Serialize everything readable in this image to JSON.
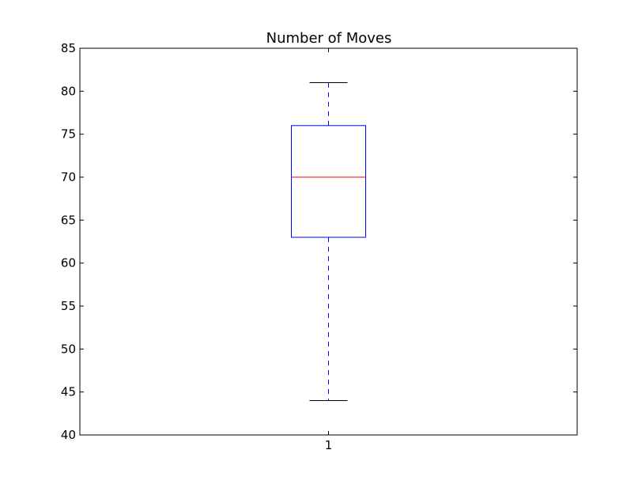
{
  "chart_data": {
    "type": "box",
    "title": "Number of Moves",
    "xlabel": "",
    "ylabel": "",
    "categories": [
      "1"
    ],
    "ylim": [
      40,
      85
    ],
    "yticks": [
      40,
      45,
      50,
      55,
      60,
      65,
      70,
      75,
      80,
      85
    ],
    "grid": false,
    "boxes": [
      {
        "category": "1",
        "whisker_low": 44,
        "q1": 63,
        "median": 70,
        "q3": 76,
        "whisker_high": 81
      }
    ],
    "colors": {
      "box": "#0000ff",
      "median": "#ff0000",
      "whisker": "#0000ff",
      "cap": "#000000",
      "frame": "#000000"
    }
  }
}
